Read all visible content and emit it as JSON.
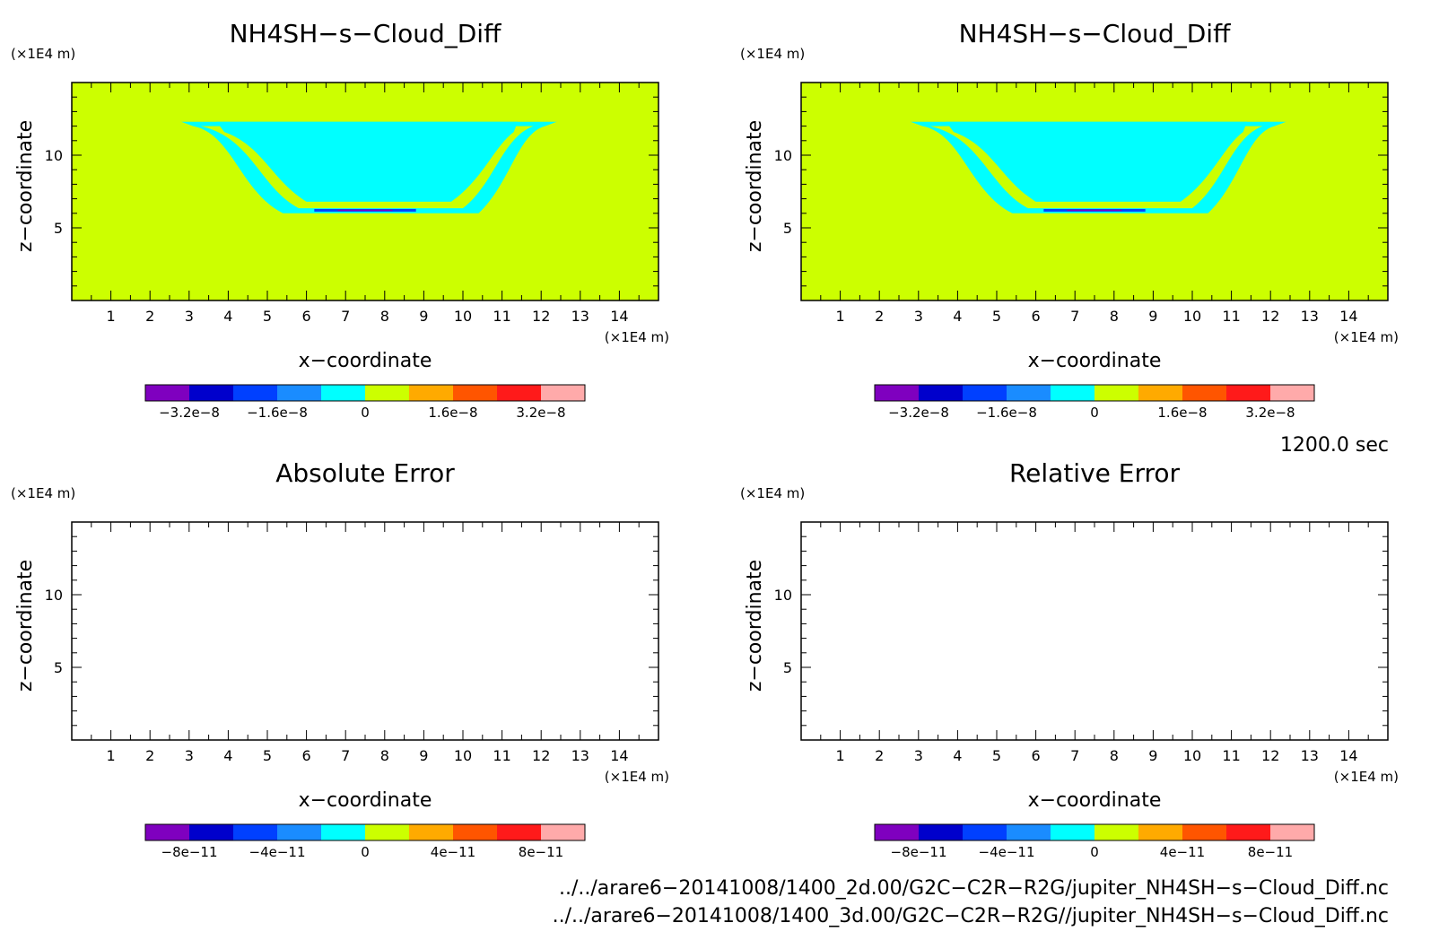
{
  "chart_data": {
    "type": "heatmap",
    "panels": [
      {
        "id": "top-left",
        "title": "NH4SH−s−Cloud_Diff",
        "xlabel": "x−coordinate",
        "ylabel": "z−coordinate",
        "x_unit": "(×1E4 m)",
        "y_unit": "(×1E4 m)",
        "x_ticks": [
          "1",
          "2",
          "3",
          "4",
          "5",
          "6",
          "7",
          "8",
          "9",
          "10",
          "11",
          "12",
          "13",
          "14"
        ],
        "y_ticks": [
          "5",
          "10"
        ],
        "xlim": [
          0,
          15
        ],
        "ylim": [
          0,
          15
        ],
        "field": "cloud",
        "colorbar": {
          "labels": [
            "−3.2e−8",
            "−1.6e−8",
            "0",
            "1.6e−8",
            "3.2e−8"
          ],
          "label_values": [
            -3.2e-08,
            -1.6e-08,
            0,
            1.6e-08,
            3.2e-08
          ],
          "range": [
            -4e-08,
            4e-08
          ]
        }
      },
      {
        "id": "top-right",
        "title": "NH4SH−s−Cloud_Diff",
        "xlabel": "x−coordinate",
        "ylabel": "z−coordinate",
        "x_unit": "(×1E4 m)",
        "y_unit": "(×1E4 m)",
        "x_ticks": [
          "1",
          "2",
          "3",
          "4",
          "5",
          "6",
          "7",
          "8",
          "9",
          "10",
          "11",
          "12",
          "13",
          "14"
        ],
        "y_ticks": [
          "5",
          "10"
        ],
        "xlim": [
          0,
          15
        ],
        "ylim": [
          0,
          15
        ],
        "field": "cloud",
        "colorbar": {
          "labels": [
            "−3.2e−8",
            "−1.6e−8",
            "0",
            "1.6e−8",
            "3.2e−8"
          ],
          "label_values": [
            -3.2e-08,
            -1.6e-08,
            0,
            1.6e-08,
            3.2e-08
          ],
          "range": [
            -4e-08,
            4e-08
          ]
        }
      },
      {
        "id": "bottom-left",
        "title": "Absolute Error",
        "xlabel": "x−coordinate",
        "ylabel": "z−coordinate",
        "x_unit": "(×1E4 m)",
        "y_unit": "(×1E4 m)",
        "x_ticks": [
          "1",
          "2",
          "3",
          "4",
          "5",
          "6",
          "7",
          "8",
          "9",
          "10",
          "11",
          "12",
          "13",
          "14"
        ],
        "y_ticks": [
          "5",
          "10"
        ],
        "xlim": [
          0,
          15
        ],
        "ylim": [
          0,
          15
        ],
        "field": "empty",
        "colorbar": {
          "labels": [
            "−8e−11",
            "−4e−11",
            "0",
            "4e−11",
            "8e−11"
          ],
          "label_values": [
            -8e-11,
            -4e-11,
            0,
            4e-11,
            8e-11
          ],
          "range": [
            -1e-10,
            1e-10
          ]
        }
      },
      {
        "id": "bottom-right",
        "title": "Relative Error",
        "xlabel": "x−coordinate",
        "ylabel": "z−coordinate",
        "x_unit": "(×1E4 m)",
        "y_unit": "(×1E4 m)",
        "x_ticks": [
          "1",
          "2",
          "3",
          "4",
          "5",
          "6",
          "7",
          "8",
          "9",
          "10",
          "11",
          "12",
          "13",
          "14"
        ],
        "y_ticks": [
          "5",
          "10"
        ],
        "xlim": [
          0,
          15
        ],
        "ylim": [
          0,
          15
        ],
        "field": "empty",
        "colorbar": {
          "labels": [
            "−8e−11",
            "−4e−11",
            "0",
            "4e−11",
            "8e−11"
          ],
          "label_values": [
            -8e-11,
            -4e-11,
            0,
            4e-11,
            8e-11
          ],
          "range": [
            -1e-10,
            1e-10
          ]
        }
      }
    ],
    "colorbar_colors": [
      "#7f00bf",
      "#0000cc",
      "#0040ff",
      "#1a8cff",
      "#00ffff",
      "#ccff00",
      "#ffaa00",
      "#ff5500",
      "#ff1a1a",
      "#ffaaaa"
    ],
    "background_color": "#ccff00",
    "cloud_color": "#00ffff",
    "time_label": "1200.0 sec",
    "file_paths": [
      "../../arare6−20141008/1400_2d.00/G2C−C2R−R2G/jupiter_NH4SH−s−Cloud_Diff.nc",
      "../../arare6−20141008/1400_3d.00/G2C−C2R−R2G//jupiter_NH4SH−s−Cloud_Diff.nc"
    ]
  }
}
